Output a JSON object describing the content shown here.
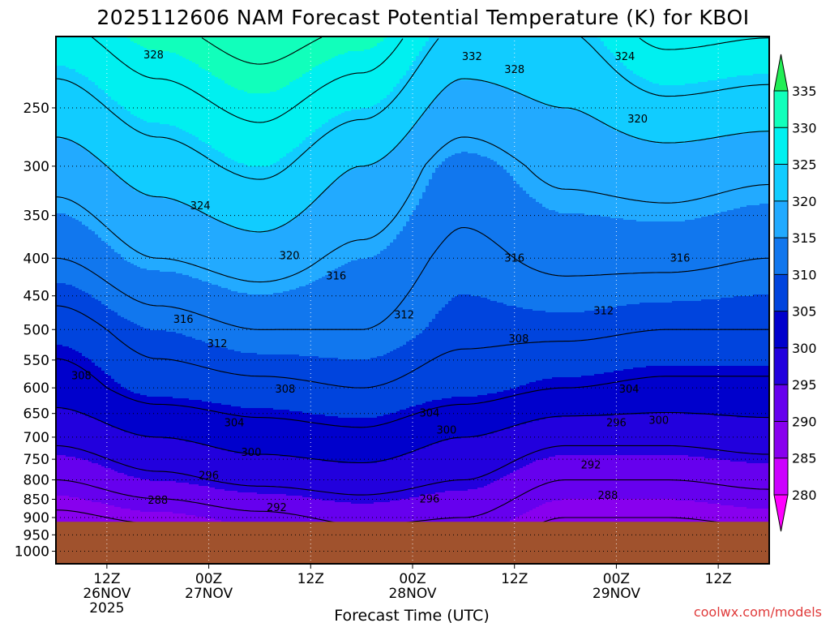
{
  "title": "2025112606 NAM Forecast Potential Temperature (K) for KBOI",
  "credit": "coolwx.com/models",
  "colors": {
    "credit": "#e03a3a",
    "ground": "#a0522d",
    "frame": "#000000",
    "levels": [
      "#ff00ff",
      "#cc00ff",
      "#8800ee",
      "#6600ee",
      "#2200dd",
      "#0000cc",
      "#0044dd",
      "#1177ee",
      "#22aaff",
      "#11ccff",
      "#00f0f0",
      "#11ffbb",
      "#22ee55",
      "#66dd00",
      "#99ff33"
    ]
  },
  "chart_data": {
    "type": "contour",
    "title": "2025112606 NAM Forecast Potential Temperature (K) for KBOI",
    "xlabel": "Forecast Time (UTC)",
    "ylabel": "",
    "x_ticks": [
      {
        "lines": [
          "12Z",
          "26NOV",
          "2025"
        ]
      },
      {
        "lines": [
          "00Z",
          "27NOV"
        ]
      },
      {
        "lines": [
          "12Z"
        ]
      },
      {
        "lines": [
          "00Z",
          "28NOV"
        ]
      },
      {
        "lines": [
          "12Z"
        ]
      },
      {
        "lines": [
          "00Z",
          "29NOV"
        ]
      },
      {
        "lines": [
          "12Z"
        ]
      }
    ],
    "x_tick_hours": [
      6,
      18,
      30,
      42,
      54,
      66,
      78
    ],
    "x_range_hours": [
      0,
      84
    ],
    "y_ticks": [
      "250",
      "300",
      "350",
      "400",
      "450",
      "500",
      "550",
      "600",
      "650",
      "700",
      "750",
      "800",
      "850",
      "900",
      "950",
      "1000"
    ],
    "y_range_hpa": [
      200,
      1040
    ],
    "y_scale": "log",
    "ground_pressure_hpa": 912,
    "grid": true,
    "colorbar": {
      "ticks": [
        "280",
        "285",
        "290",
        "295",
        "300",
        "305",
        "310",
        "315",
        "320",
        "325",
        "330",
        "335"
      ],
      "min": 280,
      "max": 335,
      "step": 5,
      "extend_both": true
    },
    "contour_interval_K": 4,
    "profiles": [
      {
        "hour": 0,
        "theta_at": {
          "250": 322,
          "300": 318,
          "400": 312,
          "500": 306,
          "600": 302,
          "700": 297,
          "800": 292,
          "900": 287
        }
      },
      {
        "hour": 12,
        "theta_at": {
          "250": 326,
          "300": 322,
          "400": 316,
          "500": 310,
          "600": 306,
          "700": 300,
          "800": 295,
          "900": 289
        }
      },
      {
        "hour": 24,
        "theta_at": {
          "250": 329,
          "300": 325,
          "400": 318,
          "500": 312,
          "600": 307,
          "700": 302,
          "800": 297,
          "900": 291
        }
      },
      {
        "hour": 36,
        "theta_at": {
          "250": 325,
          "300": 320,
          "400": 315,
          "500": 312,
          "600": 308,
          "700": 303,
          "800": 298,
          "900": 293
        }
      },
      {
        "hour": 48,
        "theta_at": {
          "250": 318,
          "300": 314,
          "400": 311,
          "500": 309,
          "600": 306,
          "700": 300,
          "800": 296,
          "900": 292
        }
      },
      {
        "hour": 60,
        "theta_at": {
          "250": 320,
          "300": 317,
          "400": 313,
          "500": 309,
          "600": 304,
          "700": 297,
          "800": 292,
          "900": 288
        }
      },
      {
        "hour": 72,
        "theta_at": {
          "250": 323,
          "300": 318,
          "400": 313,
          "500": 308,
          "600": 303,
          "700": 297,
          "800": 292,
          "900": 288
        }
      },
      {
        "hour": 84,
        "theta_at": {
          "250": 322,
          "300": 317,
          "400": 312,
          "500": 308,
          "600": 303,
          "700": 298,
          "800": 293,
          "900": 289
        }
      }
    ],
    "contour_labels": [
      {
        "text": "328",
        "hour": 11.5,
        "hpa": 212
      },
      {
        "text": "332",
        "hour": 49,
        "hpa": 213
      },
      {
        "text": "328",
        "hour": 54,
        "hpa": 222
      },
      {
        "text": "324",
        "hour": 67,
        "hpa": 213
      },
      {
        "text": "320",
        "hour": 68.5,
        "hpa": 259
      },
      {
        "text": "324",
        "hour": 17,
        "hpa": 340
      },
      {
        "text": "320",
        "hour": 27.5,
        "hpa": 397
      },
      {
        "text": "316",
        "hour": 33,
        "hpa": 423
      },
      {
        "text": "316",
        "hour": 54,
        "hpa": 400
      },
      {
        "text": "316",
        "hour": 73.5,
        "hpa": 400
      },
      {
        "text": "316",
        "hour": 15,
        "hpa": 485
      },
      {
        "text": "312",
        "hour": 41,
        "hpa": 478
      },
      {
        "text": "312",
        "hour": 64.5,
        "hpa": 472
      },
      {
        "text": "312",
        "hour": 19,
        "hpa": 523
      },
      {
        "text": "308",
        "hour": 3,
        "hpa": 578
      },
      {
        "text": "308",
        "hour": 54.5,
        "hpa": 515
      },
      {
        "text": "308",
        "hour": 27,
        "hpa": 603
      },
      {
        "text": "304",
        "hour": 21,
        "hpa": 670
      },
      {
        "text": "304",
        "hour": 44,
        "hpa": 650
      },
      {
        "text": "304",
        "hour": 67.5,
        "hpa": 603
      },
      {
        "text": "300",
        "hour": 46,
        "hpa": 685
      },
      {
        "text": "300",
        "hour": 71,
        "hpa": 665
      },
      {
        "text": "296",
        "hour": 66,
        "hpa": 670
      },
      {
        "text": "300",
        "hour": 23,
        "hpa": 735
      },
      {
        "text": "296",
        "hour": 18,
        "hpa": 790
      },
      {
        "text": "292",
        "hour": 63,
        "hpa": 764
      },
      {
        "text": "288",
        "hour": 12,
        "hpa": 853
      },
      {
        "text": "292",
        "hour": 26,
        "hpa": 873
      },
      {
        "text": "296",
        "hour": 44,
        "hpa": 850
      },
      {
        "text": "288",
        "hour": 65,
        "hpa": 840
      }
    ]
  }
}
